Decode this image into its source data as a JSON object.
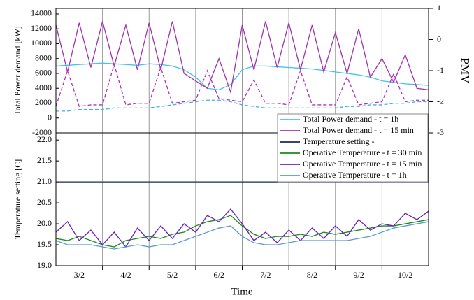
{
  "chart_data": [
    {
      "type": "line",
      "y_label": "Total Power demand [kW]",
      "y2_label": "PMV",
      "x": [
        0,
        0.25,
        0.5,
        0.75,
        1,
        1.25,
        1.5,
        1.75,
        2,
        2.25,
        2.5,
        2.75,
        3,
        3.25,
        3.5,
        3.75,
        4,
        4.25,
        4.5,
        4.75,
        5,
        5.25,
        5.5,
        5.75,
        6,
        6.25,
        6.5,
        6.75,
        7,
        7.25,
        7.5,
        7.75,
        8
      ],
      "xlim": [
        0,
        8
      ],
      "xgrid": [
        1,
        2,
        3,
        4,
        5,
        6,
        7
      ],
      "ylim": [
        -2000,
        14750
      ],
      "yticks": [
        -2000,
        0,
        2000,
        4000,
        6000,
        8000,
        10000,
        12000,
        14000
      ],
      "y2lim": [
        -3,
        1
      ],
      "y2ticks": [
        -3,
        -2,
        -1,
        0,
        1
      ],
      "legend": "lower right",
      "series": [
        {
          "name": "Total Power demand - t = 1h",
          "color": "#40c4e4",
          "values": [
            7000,
            7100,
            7200,
            7300,
            7400,
            7300,
            7200,
            7100,
            7300,
            7200,
            7000,
            6500,
            5500,
            4000,
            3800,
            4500,
            6500,
            7000,
            7000,
            6900,
            6800,
            6700,
            6600,
            6400,
            6200,
            6000,
            5800,
            5500,
            5000,
            4800,
            4600,
            4500,
            4400
          ]
        },
        {
          "name": "Total Power demand - t = 15 min",
          "color": "#a030b0",
          "values": [
            12500,
            6200,
            12800,
            6800,
            13000,
            7000,
            12500,
            6500,
            12800,
            6500,
            13000,
            6000,
            5000,
            4000,
            8000,
            3500,
            12500,
            6500,
            13000,
            6800,
            12800,
            6500,
            12500,
            6200,
            11500,
            6000,
            12000,
            5500,
            8000,
            4800,
            8500,
            4000,
            3800
          ]
        },
        {
          "color": "#b030c0",
          "axis": "y2",
          "dashed": true,
          "values": [
            -2.15,
            -1.0,
            -2.15,
            -2.1,
            -2.1,
            -0.8,
            -2.1,
            -2.05,
            -2.05,
            -0.9,
            -2.05,
            -2.0,
            -1.95,
            -1.0,
            -1.9,
            -1.95,
            -2.0,
            -1.3,
            -2.05,
            -2.05,
            -2.1,
            -1.0,
            -2.1,
            -2.1,
            -2.1,
            -1.2,
            -2.1,
            -2.05,
            -2.0,
            -1.1,
            -2.0,
            -1.95,
            -1.95
          ]
        },
        {
          "color": "#40b0e0",
          "axis": "y2",
          "dashed": true,
          "values": [
            -2.3,
            -2.3,
            -2.25,
            -2.25,
            -2.25,
            -2.2,
            -2.2,
            -2.2,
            -2.2,
            -2.15,
            -2.1,
            -2.05,
            -2.0,
            -1.95,
            -1.95,
            -2.0,
            -2.1,
            -2.15,
            -2.2,
            -2.2,
            -2.2,
            -2.2,
            -2.2,
            -2.2,
            -2.2,
            -2.15,
            -2.15,
            -2.1,
            -2.1,
            -2.05,
            -2.05,
            -2.0,
            -2.0
          ]
        }
      ]
    },
    {
      "type": "line",
      "x_label": "Time",
      "y_label": "Temperature setting [C]",
      "x": [
        0,
        0.25,
        0.5,
        0.75,
        1,
        1.25,
        1.5,
        1.75,
        2,
        2.25,
        2.5,
        2.75,
        3,
        3.25,
        3.5,
        3.75,
        4,
        4.25,
        4.5,
        4.75,
        5,
        5.25,
        5.5,
        5.75,
        6,
        6.25,
        6.5,
        6.75,
        7,
        7.25,
        7.5,
        7.75,
        8
      ],
      "xlim": [
        0,
        8
      ],
      "xgrid": [
        1,
        2,
        3,
        4,
        5,
        6,
        7
      ],
      "xticks": [
        {
          "value": 0.5,
          "label": "3/2"
        },
        {
          "value": 1.5,
          "label": "4/2"
        },
        {
          "value": 2.5,
          "label": "5/2"
        },
        {
          "value": 3.5,
          "label": "6/2"
        },
        {
          "value": 4.5,
          "label": "7/2"
        },
        {
          "value": 5.5,
          "label": "8/2"
        },
        {
          "value": 6.5,
          "label": "9/2"
        },
        {
          "value": 7.5,
          "label": "10/2"
        }
      ],
      "ylim": [
        19,
        22.17
      ],
      "yticks": [
        {
          "value": 19,
          "label": "19.0"
        },
        {
          "value": 19.5,
          "label": "19.5"
        },
        {
          "value": 20,
          "label": "20.0"
        },
        {
          "value": 20.5,
          "label": "20.5"
        },
        {
          "value": 21,
          "label": "21.0"
        },
        {
          "value": 21.5,
          "label": "21.5"
        },
        {
          "value": 22,
          "label": "22.0"
        }
      ],
      "series": [
        {
          "name": "Temperature setting -",
          "color": "#1a2a5a",
          "x": [
            0,
            8
          ],
          "values": [
            21,
            21
          ]
        },
        {
          "name": "Operative Temperature - t = 30 min",
          "color": "#1a8a1a",
          "values": [
            19.65,
            19.6,
            19.7,
            19.6,
            19.5,
            19.45,
            19.6,
            19.65,
            19.7,
            19.65,
            19.75,
            19.8,
            19.95,
            20.05,
            20.1,
            20.2,
            19.95,
            19.75,
            19.65,
            19.7,
            19.7,
            19.75,
            19.7,
            19.8,
            19.75,
            19.8,
            19.85,
            19.9,
            19.95,
            19.95,
            20.0,
            20.05,
            20.1
          ]
        },
        {
          "name": "Operative Temperature - t = 15 min",
          "color": "#6a1fc0",
          "values": [
            19.8,
            20.05,
            19.6,
            19.85,
            19.5,
            19.8,
            19.45,
            19.9,
            19.6,
            19.95,
            19.65,
            20.0,
            19.8,
            20.2,
            20.05,
            20.35,
            20.0,
            19.6,
            19.8,
            19.55,
            19.85,
            19.6,
            19.9,
            19.65,
            19.95,
            19.7,
            20.1,
            19.85,
            20.0,
            19.95,
            20.25,
            20.1,
            20.3
          ]
        },
        {
          "name": "Operative Temperature - t = 1h",
          "color": "#5a9ad5",
          "values": [
            19.6,
            19.5,
            19.5,
            19.5,
            19.45,
            19.4,
            19.45,
            19.5,
            19.45,
            19.5,
            19.5,
            19.6,
            19.7,
            19.8,
            19.9,
            19.95,
            19.7,
            19.55,
            19.5,
            19.5,
            19.55,
            19.6,
            19.6,
            19.6,
            19.6,
            19.6,
            19.65,
            19.7,
            19.8,
            19.9,
            19.95,
            20.0,
            20.05
          ]
        }
      ]
    }
  ]
}
